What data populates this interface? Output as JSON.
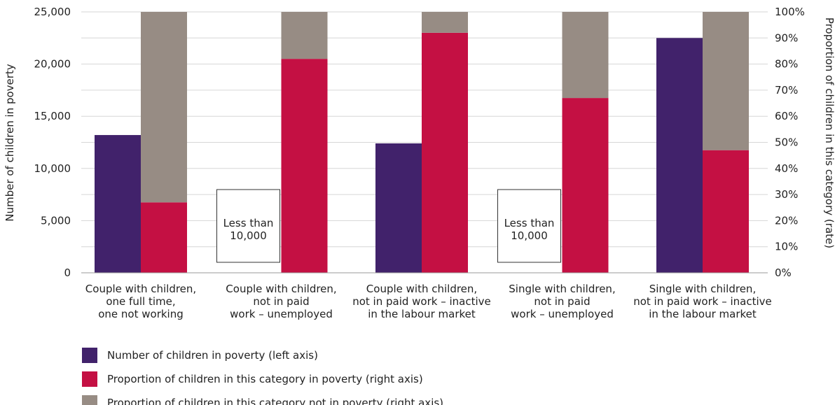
{
  "chart_data": {
    "type": "bar",
    "categories": [
      [
        "Couple with children,",
        "one full time,",
        "one not working"
      ],
      [
        "Couple with children,",
        "not in paid",
        "work – unemployed"
      ],
      [
        "Couple with children,",
        "not in paid work – inactive",
        "in the labour market"
      ],
      [
        "Single with children,",
        "not in paid",
        "work – unemployed"
      ],
      [
        "Single with children,",
        "not in paid work – inactive",
        "in the labour market"
      ]
    ],
    "series": [
      {
        "name": "Number of children in poverty (left axis)",
        "axis": "left",
        "color": "#41226b",
        "values": [
          13200,
          null,
          12400,
          null,
          22500
        ]
      },
      {
        "name": "Proportion of children in this category in poverty (right axis)",
        "axis": "right",
        "color": "#c41043",
        "values": [
          27,
          82,
          92,
          67,
          47
        ]
      },
      {
        "name": "Proportion of children in this category not in poverty (right axis)",
        "axis": "right",
        "color": "#978c84",
        "values": [
          73,
          18,
          8,
          33,
          53
        ]
      }
    ],
    "annotations": [
      {
        "category_index": 1,
        "text": [
          "Less than",
          "10,000"
        ]
      },
      {
        "category_index": 3,
        "text": [
          "Less than",
          "10,000"
        ]
      }
    ],
    "ylabel": "Number of children in poverty",
    "ylabel_right": "Proportion of children in this category (rate)",
    "ylim": [
      0,
      25000
    ],
    "ylim_right": [
      0,
      100
    ],
    "yticks": [
      "0",
      "5,000",
      "10,000",
      "15,000",
      "20,000",
      "25,000"
    ],
    "yticks_right": [
      "0%",
      "10%",
      "20%",
      "30%",
      "40%",
      "50%",
      "60%",
      "70%",
      "80%",
      "90%",
      "100%"
    ],
    "grid": true,
    "legend_position": "bottom-left"
  }
}
